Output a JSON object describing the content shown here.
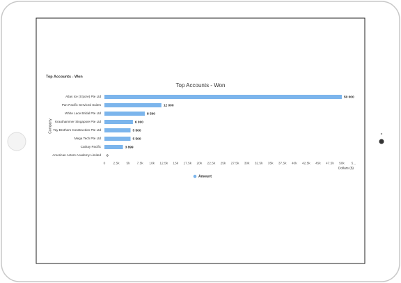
{
  "panel_title": "Top Accounts - Won",
  "chart_data": {
    "type": "hbar",
    "title": "Top Accounts - Won",
    "y_label": "Company",
    "x_label": "Dollars ($)",
    "categories": [
      "Atlas Ice (S'pore) Pte Ltd",
      "Pan Pacific Serviced Suites",
      "White Lace Bridal Pte Ltd",
      "Krauthammer Singapore Pte Ltd",
      "Tay Brothers Construction Pte Ltd",
      "Mega Tech Pte Ltd",
      "Cathay Pacific",
      "American Actors Academy Limited"
    ],
    "series": [
      {
        "name": "Amount",
        "color": "#7cb5ec",
        "values": [
          50000,
          12000,
          8500,
          6000,
          5500,
          5500,
          3899,
          0
        ],
        "value_labels": [
          "50 000",
          "12 000",
          "8 500",
          "6 000",
          "5 500",
          "5 500",
          "3 899",
          "0"
        ]
      }
    ],
    "xlim": [
      0,
      52500
    ],
    "xticks": [
      0,
      {
        "value": 2500,
        "label": "2.5k"
      },
      {
        "value": 5000,
        "label": "5k"
      },
      {
        "value": 7500,
        "label": "7.5k"
      },
      {
        "value": 10000,
        "label": "10k"
      },
      {
        "value": 12500,
        "label": "12.5k"
      },
      {
        "value": 15000,
        "label": "15k"
      },
      {
        "value": 17500,
        "label": "17.5k"
      },
      {
        "value": 20000,
        "label": "20k"
      },
      {
        "value": 22500,
        "label": "22.5k"
      },
      {
        "value": 25000,
        "label": "25k"
      },
      {
        "value": 27500,
        "label": "27.5k"
      },
      {
        "value": 30000,
        "label": "30k"
      },
      {
        "value": 32500,
        "label": "32.5k"
      },
      {
        "value": 35000,
        "label": "35k"
      },
      {
        "value": 37500,
        "label": "37.5k"
      },
      {
        "value": 40000,
        "label": "40k"
      },
      {
        "value": 42500,
        "label": "42.5k"
      },
      {
        "value": 45000,
        "label": "45k"
      },
      {
        "value": 47500,
        "label": "47.5k"
      },
      {
        "value": 50000,
        "label": "50k"
      },
      {
        "value": 52500,
        "label": "5..."
      }
    ],
    "grid": false,
    "legend": "bottom"
  }
}
